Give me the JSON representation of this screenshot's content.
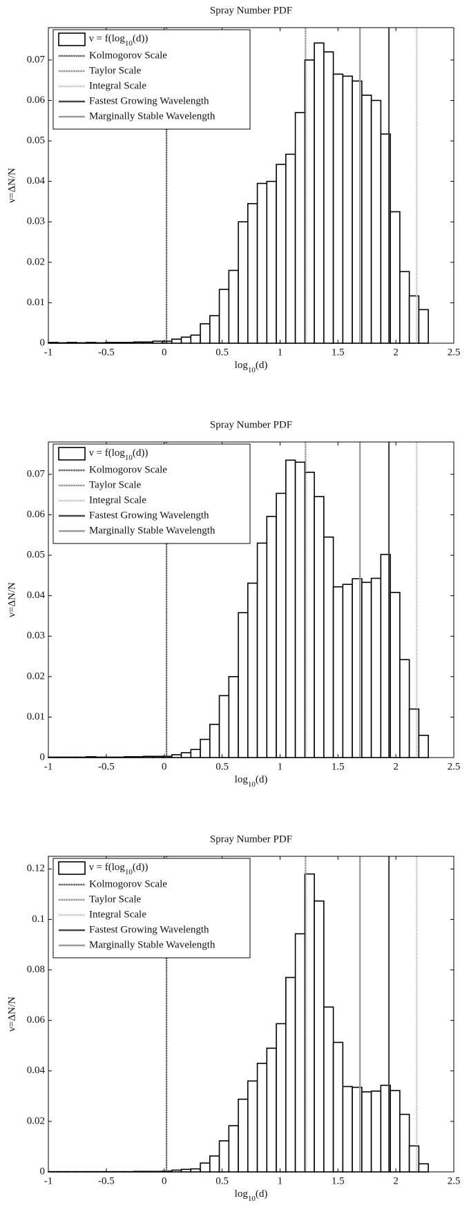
{
  "chart_data": [
    {
      "type": "histogram",
      "title": "Spray Number PDF",
      "xlabel": [
        "log",
        "10",
        "(d)"
      ],
      "ylabel": "ν=ΔN/N",
      "bins": [
        -1.0,
        -0.918,
        -0.836,
        -0.754,
        -0.672,
        -0.59,
        -0.508,
        -0.426,
        -0.344,
        -0.262,
        -0.18,
        -0.098,
        -0.016,
        0.066,
        0.148,
        0.23,
        0.312,
        0.394,
        0.476,
        0.558,
        0.64,
        0.722,
        0.804,
        0.886,
        0.968,
        1.05,
        1.132,
        1.214,
        1.296,
        1.378,
        1.46,
        1.542,
        1.624,
        1.706,
        1.788,
        1.87,
        1.952,
        2.034,
        2.116,
        2.198,
        2.28
      ],
      "series": [
        {
          "name": [
            "ν = f(log",
            "10",
            "(d))"
          ],
          "color": "#ffffff",
          "values": [
            0.0002,
            0.0001,
            0.0002,
            0.0001,
            0.0002,
            0.0001,
            0.0002,
            0.0002,
            0.0002,
            0.0003,
            0.0003,
            0.0005,
            0.0005,
            0.001,
            0.0015,
            0.002,
            0.0048,
            0.0068,
            0.0133,
            0.018,
            0.03,
            0.0345,
            0.0395,
            0.04,
            0.0442,
            0.0467,
            0.057,
            0.07,
            0.0742,
            0.072,
            0.0665,
            0.066,
            0.0648,
            0.0613,
            0.06,
            0.0517,
            0.0325,
            0.0177,
            0.0117,
            0.0083
          ]
        }
      ],
      "vlines": [
        {
          "name": "Kolmogorov Scale",
          "x": 0.02,
          "color": "#333333",
          "dash": "1.5,1"
        },
        {
          "name": "Taylor Scale",
          "x": 1.22,
          "color": "#777777",
          "dash": "1.5,1"
        },
        {
          "name": "Integral Scale",
          "x": 2.18,
          "color": "#bbbbbb",
          "dash": "1.5,1"
        },
        {
          "name": "Fastest Growing Wavelength",
          "x": 1.94,
          "color": "#444444",
          "dash": "none"
        },
        {
          "name": "Marginally Stable Wavelength",
          "x": 1.69,
          "color": "#999999",
          "dash": "none"
        }
      ],
      "xlim": [
        -1,
        2.5
      ],
      "ylim": [
        0,
        0.078
      ],
      "xticks": [
        -1,
        -0.5,
        0,
        0.5,
        1,
        1.5,
        2,
        2.5
      ],
      "yticks": [
        0,
        0.01,
        0.02,
        0.03,
        0.04,
        0.05,
        0.06,
        0.07
      ],
      "legend": "upper left"
    },
    {
      "type": "histogram",
      "title": "Spray Number PDF",
      "xlabel": [
        "log",
        "10",
        "(d)"
      ],
      "ylabel": "ν=ΔN/N",
      "bins": [
        -1.0,
        -0.918,
        -0.836,
        -0.754,
        -0.672,
        -0.59,
        -0.508,
        -0.426,
        -0.344,
        -0.262,
        -0.18,
        -0.098,
        -0.016,
        0.066,
        0.148,
        0.23,
        0.312,
        0.394,
        0.476,
        0.558,
        0.64,
        0.722,
        0.804,
        0.886,
        0.968,
        1.05,
        1.132,
        1.214,
        1.296,
        1.378,
        1.46,
        1.542,
        1.624,
        1.706,
        1.788,
        1.87,
        1.952,
        2.034,
        2.116,
        2.198,
        2.28
      ],
      "series": [
        {
          "name": [
            "ν = f(log",
            "10",
            "(d))"
          ],
          "color": "#ffffff",
          "values": [
            0.0001,
            0.0001,
            0.0001,
            0.0001,
            0.0002,
            0.0001,
            0.0001,
            0.0001,
            0.0002,
            0.0002,
            0.0003,
            0.0003,
            0.0003,
            0.0007,
            0.0012,
            0.002,
            0.0045,
            0.0082,
            0.0153,
            0.02,
            0.0358,
            0.0431,
            0.053,
            0.0596,
            0.0653,
            0.0735,
            0.073,
            0.0705,
            0.0645,
            0.0545,
            0.0422,
            0.0428,
            0.0442,
            0.0433,
            0.0443,
            0.0502,
            0.0408,
            0.0242,
            0.012,
            0.0055
          ]
        }
      ],
      "vlines": [
        {
          "name": "Kolmogorov Scale",
          "x": 0.02,
          "color": "#333333",
          "dash": "1.5,1"
        },
        {
          "name": "Taylor Scale",
          "x": 1.22,
          "color": "#777777",
          "dash": "1.5,1"
        },
        {
          "name": "Integral Scale",
          "x": 2.18,
          "color": "#bbbbbb",
          "dash": "1.5,1"
        },
        {
          "name": "Fastest Growing Wavelength",
          "x": 1.94,
          "color": "#444444",
          "dash": "none"
        },
        {
          "name": "Marginally Stable Wavelength",
          "x": 1.69,
          "color": "#999999",
          "dash": "none"
        }
      ],
      "xlim": [
        -1,
        2.5
      ],
      "ylim": [
        0,
        0.078
      ],
      "xticks": [
        -1,
        -0.5,
        0,
        0.5,
        1,
        1.5,
        2,
        2.5
      ],
      "yticks": [
        0,
        0.01,
        0.02,
        0.03,
        0.04,
        0.05,
        0.06,
        0.07
      ],
      "legend": "upper left"
    },
    {
      "type": "histogram",
      "title": "Spray Number PDF",
      "xlabel": [
        "log",
        "10",
        "(d)"
      ],
      "ylabel": "ν=ΔN/N",
      "bins": [
        -1.0,
        -0.918,
        -0.836,
        -0.754,
        -0.672,
        -0.59,
        -0.508,
        -0.426,
        -0.344,
        -0.262,
        -0.18,
        -0.098,
        -0.016,
        0.066,
        0.148,
        0.23,
        0.312,
        0.394,
        0.476,
        0.558,
        0.64,
        0.722,
        0.804,
        0.886,
        0.968,
        1.05,
        1.132,
        1.214,
        1.296,
        1.378,
        1.46,
        1.542,
        1.624,
        1.706,
        1.788,
        1.87,
        1.952,
        2.034,
        2.116,
        2.198,
        2.28
      ],
      "series": [
        {
          "name": [
            "ν = f(log",
            "10",
            "(d))"
          ],
          "color": "#ffffff",
          "values": [
            0.0001,
            0.0001,
            0.0001,
            0.0001,
            0.0001,
            0.0001,
            0.0001,
            0.0001,
            0.0001,
            0.0002,
            0.0002,
            0.0002,
            0.0003,
            0.0007,
            0.001,
            0.0012,
            0.0035,
            0.0063,
            0.0123,
            0.0183,
            0.0288,
            0.036,
            0.043,
            0.049,
            0.0587,
            0.077,
            0.0943,
            0.118,
            0.1073,
            0.0653,
            0.0513,
            0.0338,
            0.0335,
            0.0317,
            0.032,
            0.0343,
            0.0322,
            0.0228,
            0.0103,
            0.0032
          ]
        }
      ],
      "vlines": [
        {
          "name": "Kolmogorov Scale",
          "x": 0.02,
          "color": "#333333",
          "dash": "1.5,1"
        },
        {
          "name": "Taylor Scale",
          "x": 1.22,
          "color": "#777777",
          "dash": "1.5,1"
        },
        {
          "name": "Integral Scale",
          "x": 2.18,
          "color": "#bbbbbb",
          "dash": "1.5,1"
        },
        {
          "name": "Fastest Growing Wavelength",
          "x": 1.94,
          "color": "#444444",
          "dash": "none"
        },
        {
          "name": "Marginally Stable Wavelength",
          "x": 1.69,
          "color": "#999999",
          "dash": "none"
        }
      ],
      "xlim": [
        -1,
        2.5
      ],
      "ylim": [
        0,
        0.125
      ],
      "xticks": [
        -1,
        -0.5,
        0,
        0.5,
        1,
        1.5,
        2,
        2.5
      ],
      "yticks": [
        0,
        0.02,
        0.04,
        0.06,
        0.08,
        0.1,
        0.12
      ],
      "legend": "upper left"
    }
  ]
}
